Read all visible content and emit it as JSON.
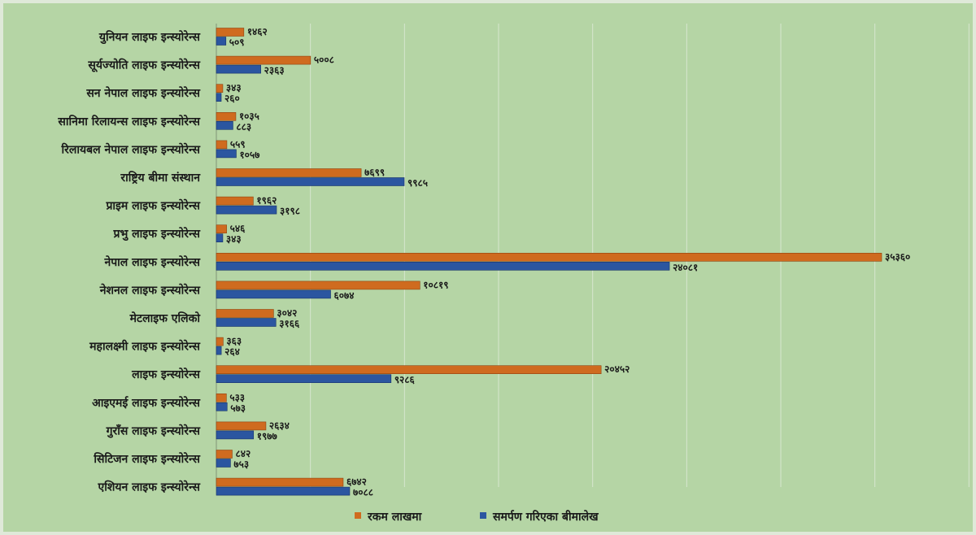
{
  "chart_data": {
    "type": "bar",
    "orientation": "horizontal",
    "categories": [
      "युनियन लाइफ इन्स्योरेन्स",
      "सूर्यज्योति लाइफ इन्स्योरेन्स",
      "सन नेपाल लाइफ इन्स्योरेन्स",
      "सानिमा रिलायन्स लाइफ इन्स्योरेन्स",
      "रिलायबल नेपाल लाइफ इन्स्योरेन्स",
      "राष्ट्रिय बीमा संस्थान",
      "प्राइम लाइफ इन्स्योरेन्स",
      "प्रभु लाइफ इन्स्योरेन्स",
      "नेपाल लाइफ इन्स्योरेन्स",
      "नेशनल लाइफ इन्स्योरेन्स",
      "मेटलाइफ एलिको",
      "महालक्ष्मी लाइफ इन्स्योरेन्स",
      "लाइफ इन्स्योरेन्स",
      "आइएमई लाइफ इन्स्योरेन्स",
      "गुराँस लाइफ इन्स्योरेन्स",
      "सिटिजन लाइफ इन्स्योरेन्स",
      "एशियन लाइफ इन्स्योरेन्स"
    ],
    "series": [
      {
        "name": "रकम लाखमा",
        "color": "#cf6b1f",
        "values": [
          1462,
          5008,
          343,
          1035,
          559,
          7699,
          1962,
          546,
          35360,
          10819,
          3042,
          363,
          20452,
          533,
          2634,
          842,
          6742
        ],
        "labels": [
          "१४६२",
          "५००८",
          "३४३",
          "१०३५",
          "५५९",
          "७६९९",
          "१९६२",
          "५४६",
          "३५३६०",
          "१०८१९",
          "३०४२",
          "३६३",
          "२०४५२",
          "५३३",
          "२६३४",
          "८४२",
          "६७४२"
        ]
      },
      {
        "name": "समर्पण गरिएका बीमालेख",
        "color": "#2b56a0",
        "values": [
          509,
          2363,
          260,
          883,
          1057,
          9985,
          3198,
          343,
          24081,
          6074,
          3166,
          264,
          9286,
          573,
          1977,
          753,
          7088
        ],
        "labels": [
          "५०९",
          "२३६३",
          "२६०",
          "८८३",
          "१०५७",
          "९९८५",
          "३१९८",
          "३४३",
          "२४०८१",
          "६०७४",
          "३१६६",
          "२६४",
          "९२८६",
          "५७३",
          "१९७७",
          "७५३",
          "७०८८"
        ]
      }
    ],
    "xlim": [
      0,
      40000
    ],
    "grid": true,
    "legend_position": "bottom"
  }
}
